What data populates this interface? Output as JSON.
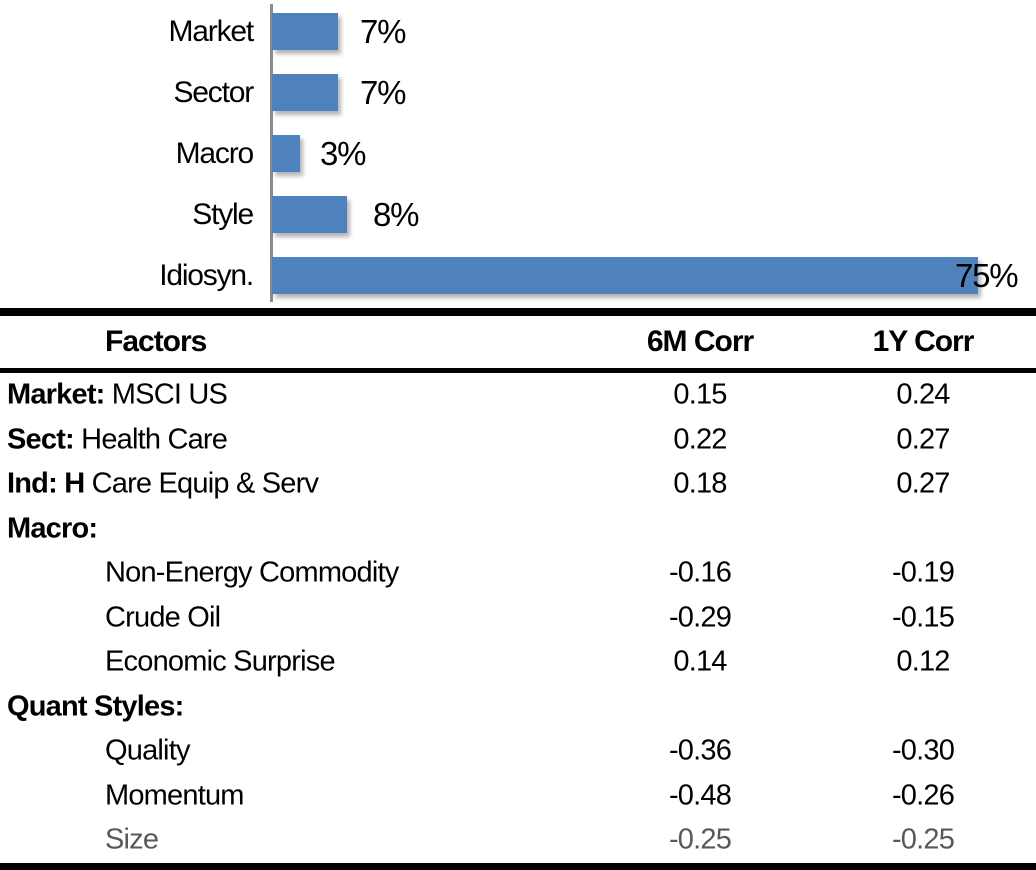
{
  "chart_data": [
    {
      "type": "bar",
      "orientation": "horizontal",
      "title": "",
      "categories": [
        "Market",
        "Sector",
        "Macro",
        "Style",
        "Idiosyn."
      ],
      "values": [
        7,
        7,
        3,
        8,
        75
      ],
      "value_labels": [
        "7%",
        "7%",
        "3%",
        "8%",
        "75%"
      ],
      "unit": "%",
      "xlim": [
        0,
        80
      ],
      "grid": false,
      "legend": false,
      "bar_color": "#4f81bd",
      "axis_color": "#8c8c8c",
      "label_color": "#000000"
    },
    {
      "type": "table",
      "columns": [
        "Factors",
        "6M Corr",
        "1Y Corr"
      ],
      "rows": [
        {
          "bold": "Market:",
          "text": " MSCI US",
          "indent": false,
          "corr_6m": "0.15",
          "corr_1y": "0.24",
          "muted": false
        },
        {
          "bold": "Sect:",
          "text": " Health Care",
          "indent": false,
          "corr_6m": "0.22",
          "corr_1y": "0.27",
          "muted": false
        },
        {
          "bold": "Ind: H",
          "text": " Care Equip & Serv",
          "indent": false,
          "corr_6m": "0.18",
          "corr_1y": "0.27",
          "muted": false
        },
        {
          "bold": "Macro:",
          "text": "",
          "indent": false,
          "corr_6m": "",
          "corr_1y": "",
          "muted": false
        },
        {
          "bold": "",
          "text": "Non-Energy Commodity",
          "indent": true,
          "corr_6m": "-0.16",
          "corr_1y": "-0.19",
          "muted": false
        },
        {
          "bold": "",
          "text": "Crude Oil",
          "indent": true,
          "corr_6m": "-0.29",
          "corr_1y": "-0.15",
          "muted": false
        },
        {
          "bold": "",
          "text": "Economic Surprise",
          "indent": true,
          "corr_6m": "0.14",
          "corr_1y": "0.12",
          "muted": false
        },
        {
          "bold": "Quant Styles:",
          "text": "",
          "indent": false,
          "corr_6m": "",
          "corr_1y": "",
          "muted": false
        },
        {
          "bold": "",
          "text": "Quality",
          "indent": true,
          "corr_6m": "-0.36",
          "corr_1y": "-0.30",
          "muted": false
        },
        {
          "bold": "",
          "text": "Momentum",
          "indent": true,
          "corr_6m": "-0.48",
          "corr_1y": "-0.26",
          "muted": false
        },
        {
          "bold": "",
          "text": "Size",
          "indent": true,
          "corr_6m": "-0.25",
          "corr_1y": "-0.25",
          "muted": true
        }
      ],
      "text_color": "#000000",
      "muted_color": "#595959",
      "rule_color": "#000000"
    }
  ]
}
